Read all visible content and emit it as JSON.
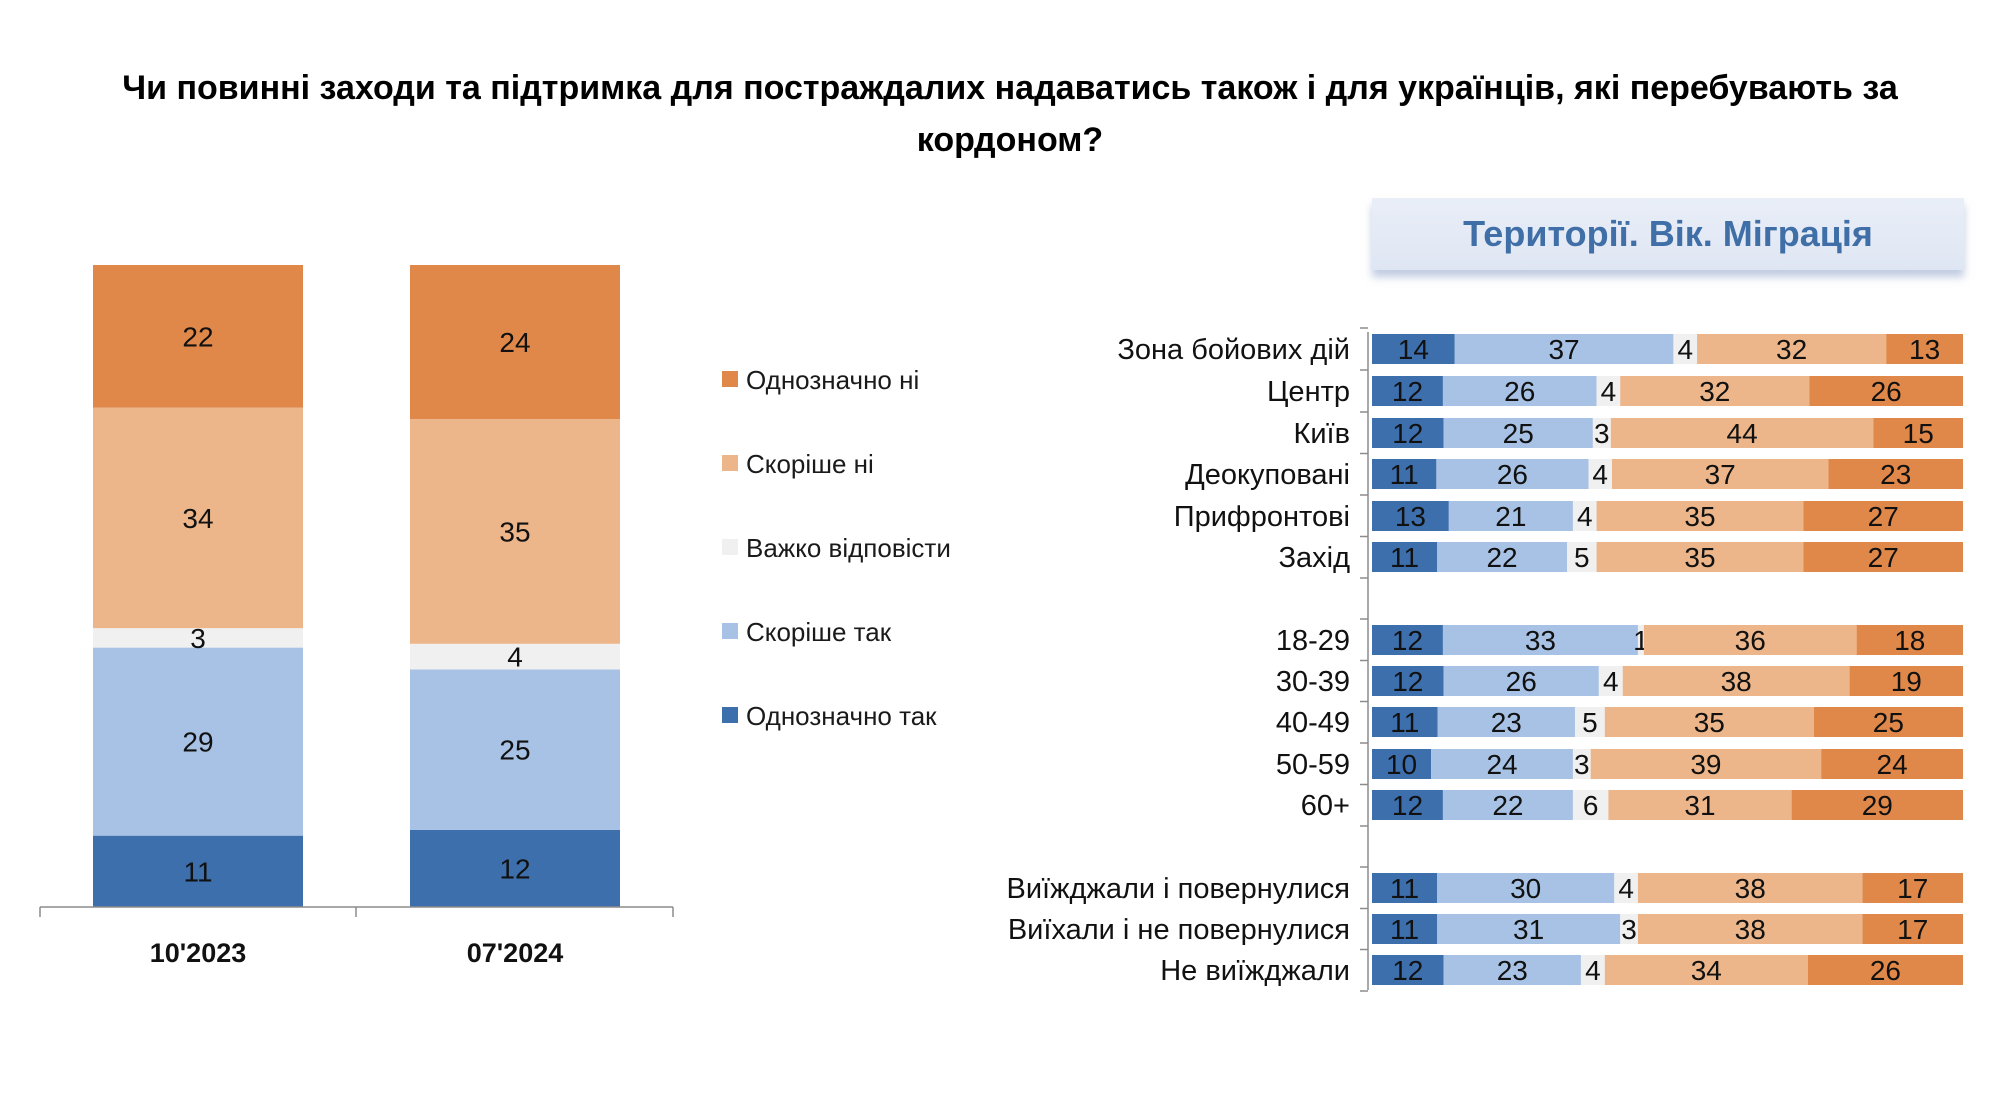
{
  "title_lines": [
    "Чи повинні заходи та підтримка для постраждалих надаватись також і для українців, які перебувають за",
    "кордоном?"
  ],
  "section_banner": "Території. Вік. Міграція",
  "colors": {
    "definitely_yes": "#3d6fad",
    "rather_yes": "#a7c2e4",
    "hard_to_say": "#f0f0f0",
    "rather_no": "#ecb68a",
    "definitely_no": "#e0884a"
  },
  "chart_data": [
    {
      "type": "bar",
      "stacked": true,
      "orientation": "vertical",
      "categories": [
        "10'2023",
        "07'2024"
      ],
      "series": [
        {
          "name": "Однозначно так",
          "values": [
            11,
            12
          ]
        },
        {
          "name": "Скоріше так",
          "values": [
            29,
            25
          ]
        },
        {
          "name": "Важко відповісти",
          "values": [
            3,
            4
          ]
        },
        {
          "name": "Скоріше ні",
          "values": [
            34,
            35
          ]
        },
        {
          "name": "Однозначно ні",
          "values": [
            22,
            24
          ]
        }
      ],
      "legend_order": [
        "Однозначно ні",
        "Скоріше ні",
        "Важко відповісти",
        "Скоріше так",
        "Однозначно так"
      ],
      "legend_position": "right",
      "ylim": [
        0,
        100
      ],
      "grid": false
    },
    {
      "type": "bar",
      "stacked": true,
      "orientation": "horizontal",
      "categories": [
        "Зона бойових дій",
        "Центр",
        "Київ",
        "Деокуповані",
        "Прифронтові",
        "Захід",
        "18-29",
        "30-39",
        "40-49",
        "50-59",
        "60+",
        "Виїжджали і повернулися",
        "Виїхали і не повернулися",
        "Не виїжджали"
      ],
      "groups": [
        [
          "Зона бойових дій",
          "Центр",
          "Київ",
          "Деокуповані",
          "Прифронтові",
          "Захід"
        ],
        [
          "18-29",
          "30-39",
          "40-49",
          "50-59",
          "60+"
        ],
        [
          "Виїжджали і повернулися",
          "Виїхали і не повернулися",
          "Не виїжджали"
        ]
      ],
      "series": [
        {
          "name": "Однозначно так",
          "values": [
            14,
            12,
            12,
            11,
            13,
            11,
            12,
            12,
            11,
            10,
            12,
            11,
            11,
            12
          ]
        },
        {
          "name": "Скоріше так",
          "values": [
            37,
            26,
            25,
            26,
            21,
            22,
            33,
            26,
            23,
            24,
            22,
            30,
            31,
            23
          ]
        },
        {
          "name": "Важко відповісти",
          "values": [
            4,
            4,
            3,
            4,
            4,
            5,
            1,
            4,
            5,
            3,
            6,
            4,
            3,
            4
          ]
        },
        {
          "name": "Скоріше ні",
          "values": [
            32,
            32,
            44,
            37,
            35,
            35,
            36,
            38,
            35,
            39,
            31,
            38,
            38,
            34
          ]
        },
        {
          "name": "Однозначно ні",
          "values": [
            13,
            26,
            15,
            23,
            27,
            27,
            18,
            19,
            25,
            24,
            29,
            17,
            17,
            26
          ]
        }
      ],
      "xlim": [
        0,
        100
      ],
      "grid": false
    }
  ]
}
